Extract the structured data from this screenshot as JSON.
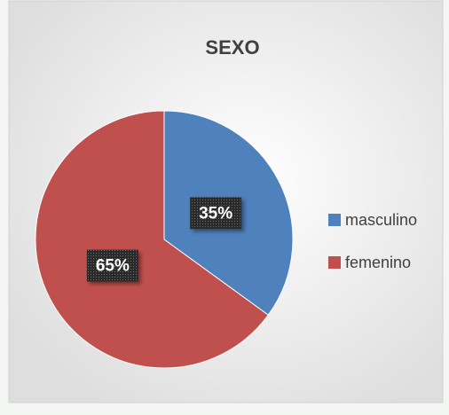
{
  "chart_data": {
    "type": "pie",
    "title": "SEXO",
    "categories": [
      "masculino",
      "femenino"
    ],
    "values": [
      35,
      65
    ],
    "value_labels": [
      "35%",
      "65%"
    ],
    "colors": [
      "#4f81bd",
      "#c0504d"
    ],
    "legend": "right"
  }
}
